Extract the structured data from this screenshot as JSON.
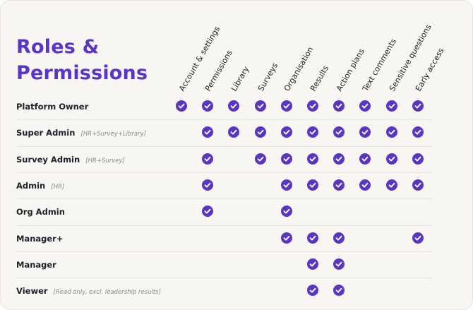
{
  "title": {
    "line1": "Roles &",
    "line2": "Permissions"
  },
  "colors": {
    "accent": "#5a33c7",
    "check_fill": "#5a33c7",
    "check_mark": "#ffffff",
    "background": "#f8f6f3"
  },
  "columns": [
    "Account & settings",
    "Permissions",
    "Library",
    "Surveys",
    "Organisation",
    "Results",
    "Action plans",
    "Text comments",
    "Sensitive questions",
    "Early access"
  ],
  "check_icon": "check-circle-icon",
  "roles": [
    {
      "name": "Platform Owner",
      "note": "",
      "permissions": [
        1,
        1,
        1,
        1,
        1,
        1,
        1,
        1,
        1,
        1
      ]
    },
    {
      "name": "Super Admin",
      "note": "[HR+Survey+Library]",
      "permissions": [
        0,
        1,
        1,
        1,
        1,
        1,
        1,
        1,
        1,
        1
      ]
    },
    {
      "name": "Survey Admin",
      "note": "[HR+Survey]",
      "permissions": [
        0,
        1,
        0,
        1,
        1,
        1,
        1,
        1,
        1,
        1
      ]
    },
    {
      "name": "Admin",
      "note": "[HR]",
      "permissions": [
        0,
        1,
        0,
        0,
        1,
        1,
        1,
        1,
        1,
        1
      ]
    },
    {
      "name": "Org Admin",
      "note": "",
      "permissions": [
        0,
        1,
        0,
        0,
        1,
        0,
        0,
        0,
        0,
        0
      ]
    },
    {
      "name": "Manager+",
      "note": "",
      "permissions": [
        0,
        0,
        0,
        0,
        1,
        1,
        1,
        0,
        0,
        1
      ]
    },
    {
      "name": "Manager",
      "note": "",
      "permissions": [
        0,
        0,
        0,
        0,
        0,
        1,
        1,
        0,
        0,
        0
      ]
    },
    {
      "name": "Viewer",
      "note": "[Read only, excl. leadership results]",
      "permissions": [
        0,
        0,
        0,
        0,
        0,
        1,
        1,
        0,
        0,
        0
      ]
    }
  ]
}
